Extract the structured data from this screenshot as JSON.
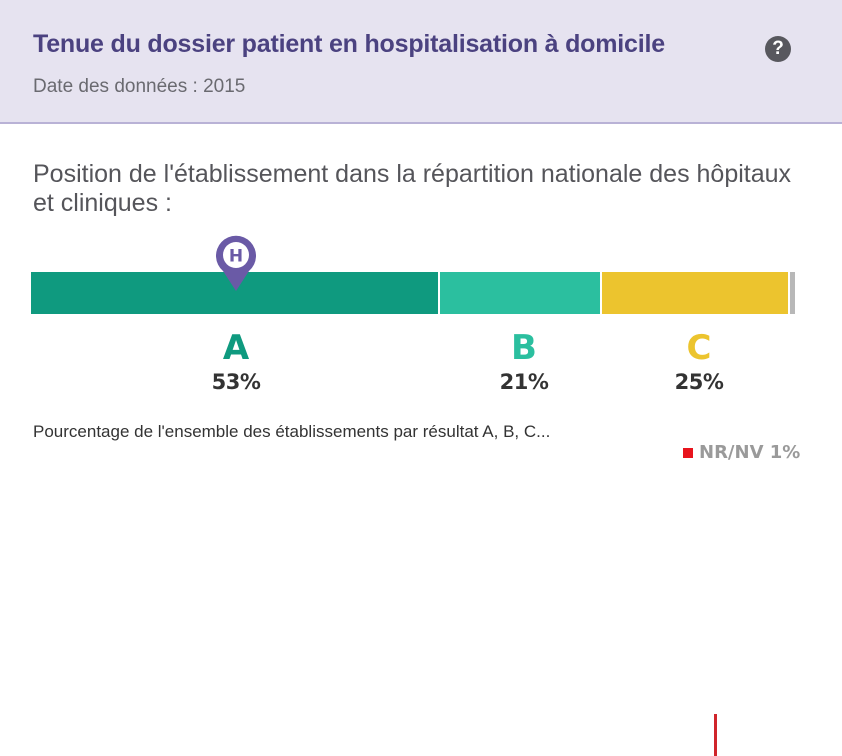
{
  "header": {
    "title": "Tenue du dossier patient en hospitalisation à domicile",
    "help_icon": "?",
    "date": "Date des données : 2015"
  },
  "section": {
    "heading": "Position de l'établissement dans la répartition nationale des hôpitaux et cliniques :"
  },
  "marker": {
    "label": "H",
    "category": "A"
  },
  "distribution": {
    "categories": [
      {
        "letter": "A",
        "percent": 53,
        "label": "53%",
        "color": "#0f9a7f"
      },
      {
        "letter": "B",
        "percent": 21,
        "label": "21%",
        "color": "#2bbf9f"
      },
      {
        "letter": "C",
        "percent": 25,
        "label": "25%",
        "color": "#ecc42e"
      }
    ],
    "nr": {
      "label": "NR/NV 1%",
      "percent": 1,
      "color": "#e8141d"
    }
  },
  "footnote": "Pourcentage de l'ensemble des établissements par résultat A, B, C..."
}
